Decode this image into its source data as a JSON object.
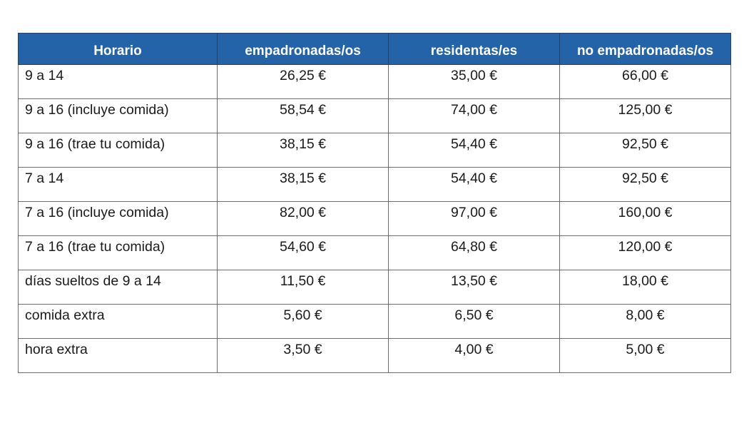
{
  "table": {
    "headers": [
      "Horario",
      "empadronadas/os",
      "residentas/es",
      "no empadronadas/os"
    ],
    "rows": [
      [
        "9 a 14",
        "26,25 €",
        "35,00 €",
        "66,00 €"
      ],
      [
        "9 a 16 (incluye comida)",
        "58,54 €",
        "74,00 €",
        "125,00 €"
      ],
      [
        "9 a 16 (trae tu comida)",
        "38,15 €",
        "54,40 €",
        "92,50 €"
      ],
      [
        "7 a 14",
        "38,15 €",
        "54,40 €",
        "92,50 €"
      ],
      [
        "7 a 16 (incluye comida)",
        "82,00 €",
        "97,00 €",
        "160,00 €"
      ],
      [
        "7 a 16 (trae tu comida)",
        "54,60 €",
        "64,80 €",
        "120,00 €"
      ],
      [
        "días sueltos de 9 a 14",
        "11,50 €",
        "13,50 €",
        "18,00 €"
      ],
      [
        "comida extra",
        "5,60 €",
        "6,50 €",
        "8,00 €"
      ],
      [
        "hora extra",
        "3,50 €",
        "4,00 €",
        "5,00 €"
      ]
    ]
  },
  "colors": {
    "header_background": "#2563a8",
    "header_text": "#ffffff",
    "border": "#6b6b6b"
  }
}
